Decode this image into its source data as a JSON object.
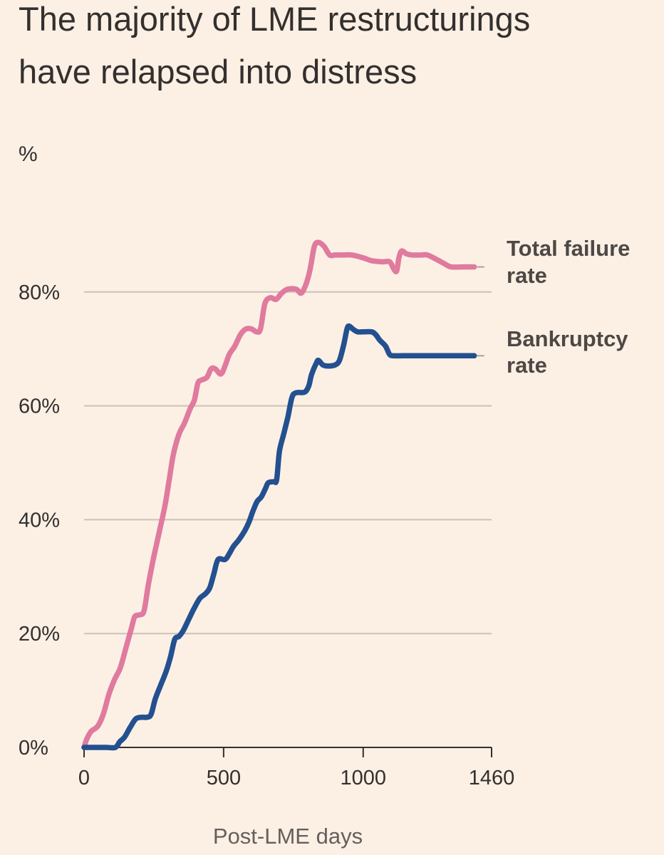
{
  "colors": {
    "background": "#fcf0e5",
    "text": "#33302e",
    "muted_text": "#66605c",
    "grid": "#ccc1b7",
    "axis": "#33302e",
    "total_failure": "#e07a9e",
    "bankruptcy": "#23508f"
  },
  "chart_data": {
    "type": "line",
    "title_lines": [
      "The majority of LME restructurings",
      "have relapsed into distress"
    ],
    "ylabel": "%",
    "xlabel": "Post-LME days",
    "xlim": [
      0,
      1460
    ],
    "ylim": [
      0,
      100
    ],
    "x_ticks": [
      {
        "value": 0,
        "label": "0"
      },
      {
        "value": 500,
        "label": "500"
      },
      {
        "value": 1000,
        "label": "1000"
      },
      {
        "value": 1460,
        "label": "1460"
      }
    ],
    "y_ticks": [
      {
        "value": 0,
        "label": "0%"
      },
      {
        "value": 20,
        "label": "20%"
      },
      {
        "value": 40,
        "label": "40%"
      },
      {
        "value": 60,
        "label": "60%"
      },
      {
        "value": 80,
        "label": "80%"
      }
    ],
    "series": [
      {
        "name": "Total failure rate",
        "label_lines": [
          "Total failure",
          "rate"
        ],
        "color": "#e07a9e",
        "points": [
          [
            0,
            0
          ],
          [
            10,
            1.5
          ],
          [
            25,
            2.8
          ],
          [
            50,
            3.8
          ],
          [
            70,
            6
          ],
          [
            90,
            9.5
          ],
          [
            110,
            12
          ],
          [
            130,
            14
          ],
          [
            150,
            17.5
          ],
          [
            170,
            21
          ],
          [
            182,
            23
          ],
          [
            200,
            23.3
          ],
          [
            215,
            24
          ],
          [
            230,
            28.5
          ],
          [
            250,
            33.5
          ],
          [
            270,
            38
          ],
          [
            290,
            42.5
          ],
          [
            305,
            47
          ],
          [
            320,
            51.5
          ],
          [
            340,
            55
          ],
          [
            360,
            57
          ],
          [
            380,
            59.5
          ],
          [
            395,
            61
          ],
          [
            408,
            64
          ],
          [
            420,
            64.5
          ],
          [
            440,
            65
          ],
          [
            455,
            66.5
          ],
          [
            470,
            66.5
          ],
          [
            490,
            65.6
          ],
          [
            505,
            67
          ],
          [
            520,
            69
          ],
          [
            540,
            70.5
          ],
          [
            560,
            72.5
          ],
          [
            580,
            73.5
          ],
          [
            600,
            73.5
          ],
          [
            618,
            73
          ],
          [
            632,
            73.5
          ],
          [
            648,
            78
          ],
          [
            668,
            79
          ],
          [
            688,
            78.7
          ],
          [
            708,
            79.8
          ],
          [
            730,
            80.5
          ],
          [
            760,
            80.5
          ],
          [
            778,
            79.8
          ],
          [
            796,
            81.5
          ],
          [
            810,
            84
          ],
          [
            825,
            88
          ],
          [
            840,
            88.7
          ],
          [
            860,
            88
          ],
          [
            880,
            86.5
          ],
          [
            900,
            86.5
          ],
          [
            930,
            86.5
          ],
          [
            960,
            86.5
          ],
          [
            1000,
            86
          ],
          [
            1030,
            85.5
          ],
          [
            1070,
            85.3
          ],
          [
            1095,
            85.3
          ],
          [
            1110,
            84
          ],
          [
            1120,
            83.7
          ],
          [
            1128,
            86
          ],
          [
            1138,
            87.2
          ],
          [
            1155,
            86.7
          ],
          [
            1175,
            86.5
          ],
          [
            1210,
            86.5
          ],
          [
            1230,
            86.5
          ],
          [
            1260,
            85.8
          ],
          [
            1290,
            85
          ],
          [
            1315,
            84.4
          ],
          [
            1360,
            84.4
          ],
          [
            1398,
            84.4
          ]
        ]
      },
      {
        "name": "Bankruptcy rate",
        "label_lines": [
          "Bankruptcy",
          "rate"
        ],
        "color": "#23508f",
        "points": [
          [
            0,
            0
          ],
          [
            40,
            0
          ],
          [
            80,
            0
          ],
          [
            112,
            0
          ],
          [
            128,
            1
          ],
          [
            145,
            1.8
          ],
          [
            165,
            3.5
          ],
          [
            185,
            5
          ],
          [
            205,
            5.3
          ],
          [
            225,
            5.3
          ],
          [
            240,
            5.8
          ],
          [
            255,
            8.5
          ],
          [
            275,
            11
          ],
          [
            295,
            13.5
          ],
          [
            310,
            16
          ],
          [
            325,
            19
          ],
          [
            340,
            19.5
          ],
          [
            355,
            20.5
          ],
          [
            375,
            22.5
          ],
          [
            395,
            24.5
          ],
          [
            415,
            26.2
          ],
          [
            435,
            27
          ],
          [
            450,
            28
          ],
          [
            465,
            30.5
          ],
          [
            480,
            33
          ],
          [
            505,
            33
          ],
          [
            520,
            34
          ],
          [
            535,
            35.3
          ],
          [
            555,
            36.5
          ],
          [
            575,
            38
          ],
          [
            590,
            39.5
          ],
          [
            605,
            41.5
          ],
          [
            620,
            43.2
          ],
          [
            635,
            44
          ],
          [
            650,
            45.5
          ],
          [
            660,
            46.5
          ],
          [
            680,
            46.7
          ],
          [
            690,
            47
          ],
          [
            700,
            52
          ],
          [
            715,
            55
          ],
          [
            730,
            58
          ],
          [
            745,
            61.5
          ],
          [
            760,
            62.3
          ],
          [
            790,
            62.4
          ],
          [
            805,
            63.5
          ],
          [
            815,
            65.5
          ],
          [
            832,
            67.5
          ],
          [
            840,
            68
          ],
          [
            855,
            67.2
          ],
          [
            875,
            67
          ],
          [
            900,
            67.2
          ],
          [
            915,
            68
          ],
          [
            930,
            70.7
          ],
          [
            942,
            73.5
          ],
          [
            950,
            74
          ],
          [
            965,
            73.4
          ],
          [
            980,
            73
          ],
          [
            1000,
            73
          ],
          [
            1030,
            73
          ],
          [
            1045,
            72.5
          ],
          [
            1060,
            71.5
          ],
          [
            1080,
            70.5
          ],
          [
            1095,
            69
          ],
          [
            1110,
            68.8
          ],
          [
            1140,
            68.8
          ],
          [
            1170,
            68.8
          ],
          [
            1398,
            68.8
          ]
        ]
      }
    ],
    "grid": true,
    "legend": "direct labels at right end of lines"
  }
}
